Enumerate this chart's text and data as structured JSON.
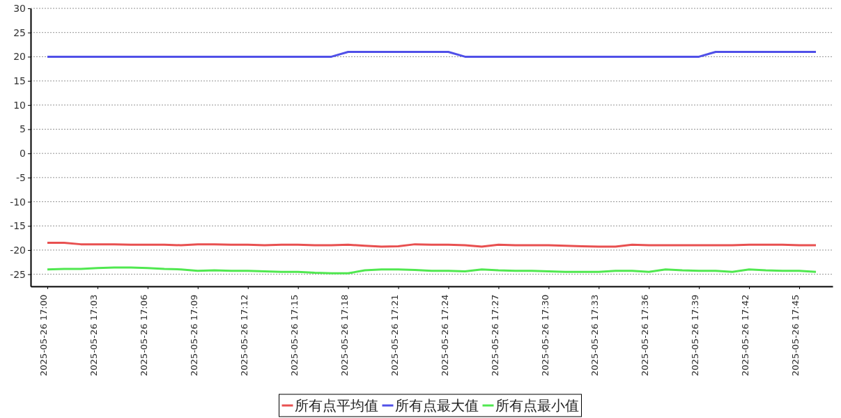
{
  "chart_data": {
    "type": "line",
    "x": [
      "2025-05-26T17:00",
      "2025-05-26T17:01",
      "2025-05-26T17:02",
      "2025-05-26T17:03",
      "2025-05-26T17:04",
      "2025-05-26T17:05",
      "2025-05-26T17:06",
      "2025-05-26T17:07",
      "2025-05-26T17:08",
      "2025-05-26T17:09",
      "2025-05-26T17:10",
      "2025-05-26T17:11",
      "2025-05-26T17:12",
      "2025-05-26T17:13",
      "2025-05-26T17:14",
      "2025-05-26T17:15",
      "2025-05-26T17:16",
      "2025-05-26T17:17",
      "2025-05-26T17:18",
      "2025-05-26T17:19",
      "2025-05-26T17:20",
      "2025-05-26T17:21",
      "2025-05-26T17:22",
      "2025-05-26T17:23",
      "2025-05-26T17:24",
      "2025-05-26T17:25",
      "2025-05-26T17:26",
      "2025-05-26T17:27",
      "2025-05-26T17:28",
      "2025-05-26T17:29",
      "2025-05-26T17:30",
      "2025-05-26T17:31",
      "2025-05-26T17:32",
      "2025-05-26T17:33",
      "2025-05-26T17:34",
      "2025-05-26T17:35",
      "2025-05-26T17:36",
      "2025-05-26T17:37",
      "2025-05-26T17:38",
      "2025-05-26T17:39",
      "2025-05-26T17:40",
      "2025-05-26T17:41",
      "2025-05-26T17:42",
      "2025-05-26T17:43",
      "2025-05-26T17:44",
      "2025-05-26T17:45",
      "2025-05-26T17:46"
    ],
    "series": [
      {
        "name": "所有点平均值",
        "color": "#e85050",
        "values": [
          -18.5,
          -18.5,
          -18.8,
          -18.8,
          -18.8,
          -18.9,
          -18.9,
          -18.9,
          -19.0,
          -18.8,
          -18.8,
          -18.9,
          -18.9,
          -19.0,
          -18.9,
          -18.9,
          -19.0,
          -19.0,
          -18.9,
          -19.1,
          -19.3,
          -19.2,
          -18.8,
          -18.9,
          -18.9,
          -19.0,
          -19.3,
          -18.9,
          -19.0,
          -19.0,
          -19.0,
          -19.1,
          -19.2,
          -19.3,
          -19.3,
          -18.9,
          -19.0,
          -19.0,
          -19.0,
          -19.0,
          -19.0,
          -19.0,
          -18.9,
          -18.9,
          -18.9,
          -19.0,
          -19.0
        ]
      },
      {
        "name": "所有点最大值",
        "color": "#5050e8",
        "values": [
          20,
          20,
          20,
          20,
          20,
          20,
          20,
          20,
          20,
          20,
          20,
          20,
          20,
          20,
          20,
          20,
          20,
          20,
          21,
          21,
          21,
          21,
          21,
          21,
          21,
          20,
          20,
          20,
          20,
          20,
          20,
          20,
          20,
          20,
          20,
          20,
          20,
          20,
          20,
          20,
          21,
          21,
          21,
          21,
          21,
          21,
          21
        ]
      },
      {
        "name": "所有点最小值",
        "color": "#50e850",
        "values": [
          -24.0,
          -23.9,
          -23.9,
          -23.7,
          -23.6,
          -23.6,
          -23.7,
          -23.9,
          -24.0,
          -24.3,
          -24.2,
          -24.3,
          -24.3,
          -24.4,
          -24.5,
          -24.5,
          -24.7,
          -24.8,
          -24.8,
          -24.2,
          -24.0,
          -24.0,
          -24.1,
          -24.3,
          -24.3,
          -24.4,
          -24.0,
          -24.2,
          -24.3,
          -24.3,
          -24.4,
          -24.5,
          -24.5,
          -24.5,
          -24.3,
          -24.3,
          -24.5,
          -24.0,
          -24.2,
          -24.3,
          -24.3,
          -24.5,
          -24.0,
          -24.2,
          -24.3,
          -24.3,
          -24.5
        ]
      }
    ],
    "xlim": [
      "2025-05-26T16:59",
      "2025-05-26T17:47"
    ],
    "xticks": [
      {
        "value": "2025-05-26T17:00",
        "label": "2025-05-26 17:00"
      },
      {
        "value": "2025-05-26T17:03",
        "label": "2025-05-26 17:03"
      },
      {
        "value": "2025-05-26T17:06",
        "label": "2025-05-26 17:06"
      },
      {
        "value": "2025-05-26T17:09",
        "label": "2025-05-26 17:09"
      },
      {
        "value": "2025-05-26T17:12",
        "label": "2025-05-26 17:12"
      },
      {
        "value": "2025-05-26T17:15",
        "label": "2025-05-26 17:15"
      },
      {
        "value": "2025-05-26T17:18",
        "label": "2025-05-26 17:18"
      },
      {
        "value": "2025-05-26T17:21",
        "label": "2025-05-26 17:21"
      },
      {
        "value": "2025-05-26T17:24",
        "label": "2025-05-26 17:24"
      },
      {
        "value": "2025-05-26T17:27",
        "label": "2025-05-26 17:27"
      },
      {
        "value": "2025-05-26T17:30",
        "label": "2025-05-26 17:30"
      },
      {
        "value": "2025-05-26T17:33",
        "label": "2025-05-26 17:33"
      },
      {
        "value": "2025-05-26T17:36",
        "label": "2025-05-26 17:36"
      },
      {
        "value": "2025-05-26T17:39",
        "label": "2025-05-26 17:39"
      },
      {
        "value": "2025-05-26T17:42",
        "label": "2025-05-26 17:42"
      },
      {
        "value": "2025-05-26T17:45",
        "label": "2025-05-26 17:45"
      }
    ],
    "ylim": [
      -27.5,
      30
    ],
    "yticks": [
      -25,
      -20,
      -15,
      -10,
      -5,
      0,
      5,
      10,
      15,
      20,
      25,
      30
    ],
    "grid": "y",
    "legend": "bottom",
    "marker": "none",
    "line_style": "solid"
  }
}
